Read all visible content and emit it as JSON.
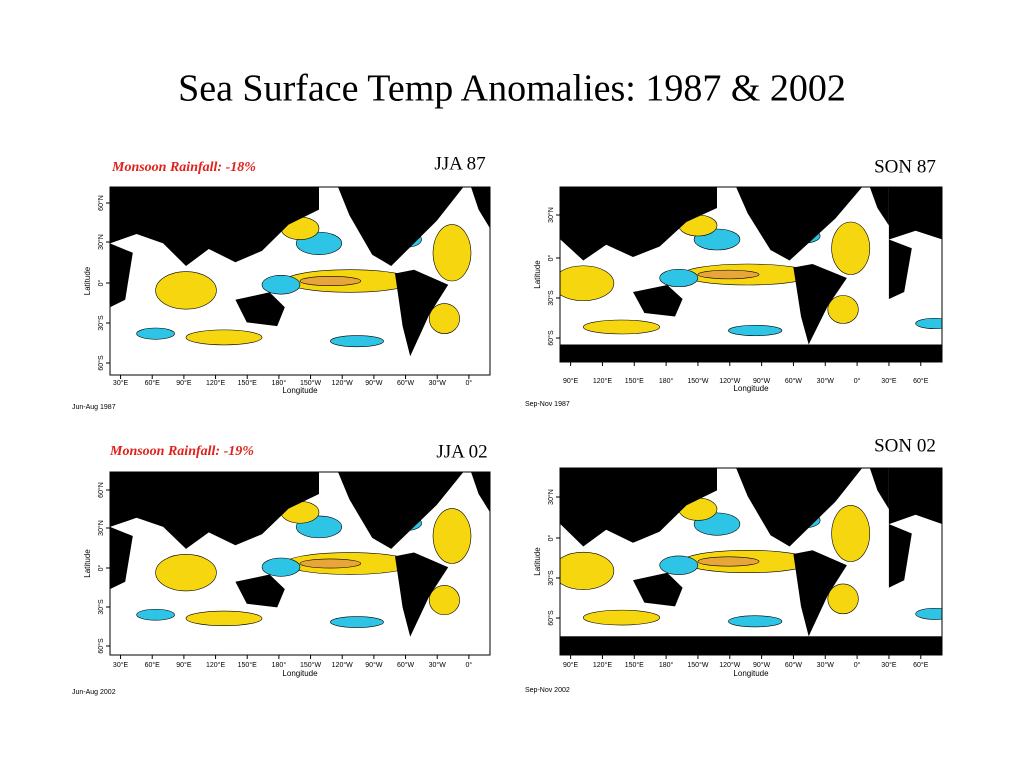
{
  "title": "Sea Surface Temp Anomalies: 1987 & 2002",
  "panels": [
    {
      "label": "JJA 87",
      "rainfall": "Monsoon Rainfall: -18%",
      "footnote": "Jun-Aug 1987",
      "x_label": "Longitude",
      "y_label": "Latitude",
      "lon_ticks": [
        "30°E",
        "60°E",
        "90°E",
        "120°E",
        "150°E",
        "180°",
        "150°W",
        "120°W",
        "90°W",
        "60°W",
        "30°W",
        "0°"
      ],
      "lat_ticks": [
        "60°N",
        "30°N",
        "0°",
        "30°S",
        "60°S"
      ]
    },
    {
      "label": "SON 87",
      "footnote": "Sep-Nov 1987",
      "x_label": "Longitude",
      "y_label": "Latitude",
      "lon_ticks": [
        "90°E",
        "120°E",
        "150°E",
        "180°",
        "150°W",
        "120°W",
        "90°W",
        "60°W",
        "30°W",
        "0°",
        "30°E",
        "60°E"
      ],
      "lat_ticks": [
        "30°N",
        "0°",
        "30°S",
        "60°S"
      ]
    },
    {
      "label": "JJA 02",
      "rainfall": "Monsoon Rainfall: -19%",
      "footnote": "Jun-Aug 2002",
      "x_label": "Longitude",
      "y_label": "Latitude",
      "lon_ticks": [
        "30°E",
        "60°E",
        "90°E",
        "120°E",
        "150°E",
        "180°",
        "150°W",
        "120°W",
        "90°W",
        "60°W",
        "30°W",
        "0°"
      ],
      "lat_ticks": [
        "60°N",
        "30°N",
        "0°",
        "30°S",
        "60°S"
      ]
    },
    {
      "label": "SON 02",
      "footnote": "Sep-Nov 2002",
      "x_label": "Longitude",
      "y_label": "Latitude",
      "lon_ticks": [
        "90°E",
        "120°E",
        "150°E",
        "180°",
        "150°W",
        "120°W",
        "90°W",
        "60°W",
        "30°W",
        "0°",
        "30°E",
        "60°E"
      ],
      "lat_ticks": [
        "30°N",
        "0°",
        "30°S",
        "60°S"
      ]
    }
  ]
}
